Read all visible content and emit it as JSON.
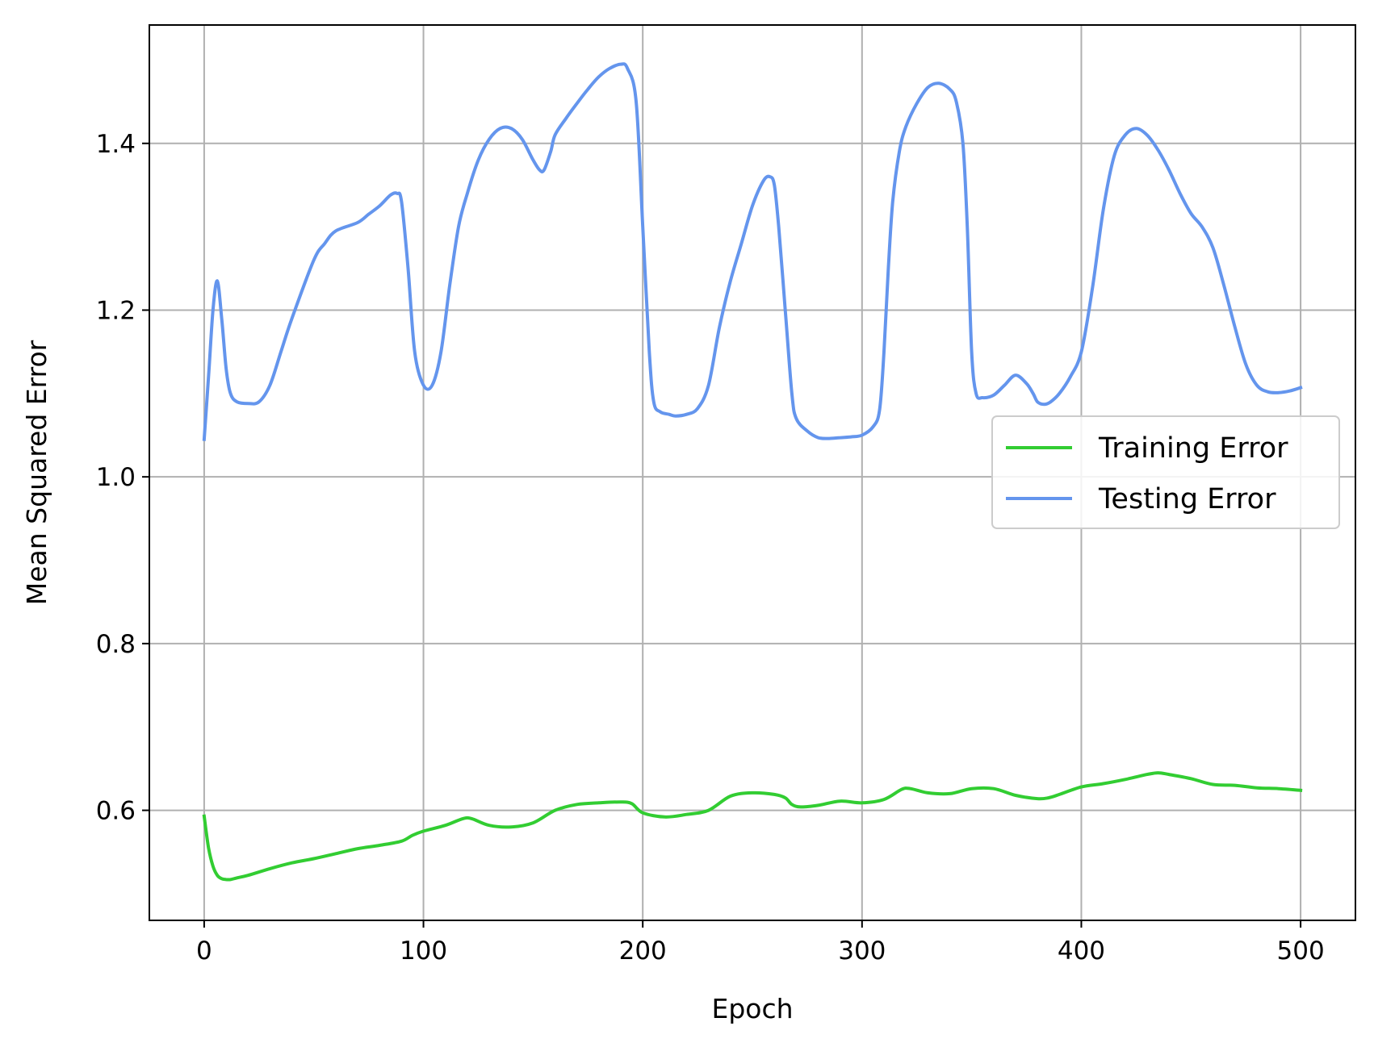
{
  "chart_data": {
    "type": "line",
    "title": "",
    "xlabel": "Epoch",
    "ylabel": "Mean Squared Error",
    "xlim": [
      -25,
      525
    ],
    "ylim": [
      0.468,
      1.542
    ],
    "xticks": [
      0,
      100,
      200,
      300,
      400,
      500
    ],
    "yticks": [
      0.6,
      0.8,
      1.0,
      1.2,
      1.4
    ],
    "xtick_labels": [
      "0",
      "100",
      "200",
      "300",
      "400",
      "500"
    ],
    "ytick_labels": [
      "0.6",
      "0.8",
      "1.0",
      "1.2",
      "1.4"
    ],
    "grid": true,
    "legend_position": "center-right",
    "series": [
      {
        "name": "Training Error",
        "color": "#32cd32",
        "x": [
          0,
          2,
          4,
          6,
          8,
          10,
          12,
          15,
          20,
          30,
          40,
          50,
          60,
          70,
          80,
          90,
          95,
          100,
          110,
          118,
          122,
          130,
          140,
          150,
          160,
          170,
          180,
          190,
          195,
          200,
          210,
          220,
          230,
          240,
          250,
          260,
          265,
          268,
          272,
          280,
          290,
          300,
          310,
          318,
          322,
          330,
          340,
          350,
          360,
          370,
          380,
          385,
          390,
          400,
          410,
          420,
          430,
          435,
          440,
          450,
          460,
          470,
          480,
          490,
          500
        ],
        "y": [
          0.593,
          0.555,
          0.533,
          0.522,
          0.518,
          0.517,
          0.517,
          0.519,
          0.522,
          0.53,
          0.537,
          0.542,
          0.548,
          0.554,
          0.558,
          0.563,
          0.57,
          0.575,
          0.582,
          0.59,
          0.59,
          0.582,
          0.58,
          0.585,
          0.6,
          0.607,
          0.609,
          0.61,
          0.608,
          0.597,
          0.592,
          0.595,
          0.6,
          0.617,
          0.621,
          0.619,
          0.615,
          0.607,
          0.604,
          0.606,
          0.611,
          0.609,
          0.613,
          0.625,
          0.626,
          0.621,
          0.62,
          0.626,
          0.626,
          0.618,
          0.614,
          0.615,
          0.619,
          0.628,
          0.632,
          0.637,
          0.643,
          0.645,
          0.643,
          0.638,
          0.631,
          0.63,
          0.627,
          0.626,
          0.624
        ]
      },
      {
        "name": "Testing Error",
        "color": "#6495ed",
        "x": [
          0,
          2,
          4,
          6,
          8,
          10,
          12,
          15,
          20,
          25,
          30,
          35,
          40,
          50,
          55,
          60,
          70,
          75,
          80,
          85,
          88,
          90,
          93,
          96,
          100,
          104,
          108,
          112,
          116,
          120,
          125,
          130,
          135,
          140,
          145,
          150,
          153,
          155,
          158,
          160,
          165,
          170,
          175,
          180,
          185,
          190,
          193,
          197,
          200,
          203,
          205,
          208,
          212,
          215,
          220,
          225,
          230,
          235,
          240,
          245,
          250,
          255,
          258,
          260,
          262,
          265,
          268,
          270,
          275,
          280,
          285,
          290,
          295,
          300,
          305,
          308,
          310,
          312,
          314,
          317,
          320,
          325,
          330,
          335,
          340,
          343,
          346,
          348,
          350,
          352,
          355,
          360,
          365,
          370,
          375,
          378,
          380,
          383,
          386,
          390,
          395,
          400,
          405,
          410,
          415,
          420,
          425,
          430,
          435,
          440,
          445,
          450,
          455,
          460,
          465,
          470,
          475,
          480,
          485,
          490,
          495,
          500
        ],
        "y": [
          1.045,
          1.12,
          1.2,
          1.235,
          1.19,
          1.13,
          1.1,
          1.09,
          1.088,
          1.09,
          1.11,
          1.15,
          1.19,
          1.26,
          1.28,
          1.295,
          1.305,
          1.315,
          1.325,
          1.338,
          1.34,
          1.33,
          1.25,
          1.15,
          1.11,
          1.11,
          1.15,
          1.23,
          1.3,
          1.34,
          1.38,
          1.405,
          1.418,
          1.418,
          1.405,
          1.38,
          1.368,
          1.368,
          1.39,
          1.41,
          1.43,
          1.448,
          1.465,
          1.48,
          1.49,
          1.495,
          1.49,
          1.45,
          1.3,
          1.15,
          1.09,
          1.078,
          1.075,
          1.073,
          1.075,
          1.082,
          1.11,
          1.18,
          1.235,
          1.28,
          1.325,
          1.355,
          1.36,
          1.35,
          1.3,
          1.2,
          1.1,
          1.07,
          1.055,
          1.047,
          1.046,
          1.047,
          1.048,
          1.05,
          1.06,
          1.08,
          1.15,
          1.25,
          1.33,
          1.39,
          1.42,
          1.448,
          1.467,
          1.472,
          1.465,
          1.45,
          1.4,
          1.3,
          1.15,
          1.1,
          1.095,
          1.098,
          1.11,
          1.122,
          1.112,
          1.1,
          1.09,
          1.087,
          1.09,
          1.1,
          1.12,
          1.15,
          1.225,
          1.32,
          1.385,
          1.41,
          1.418,
          1.41,
          1.392,
          1.368,
          1.34,
          1.316,
          1.3,
          1.275,
          1.23,
          1.18,
          1.135,
          1.11,
          1.102,
          1.101,
          1.103,
          1.107
        ]
      }
    ]
  }
}
